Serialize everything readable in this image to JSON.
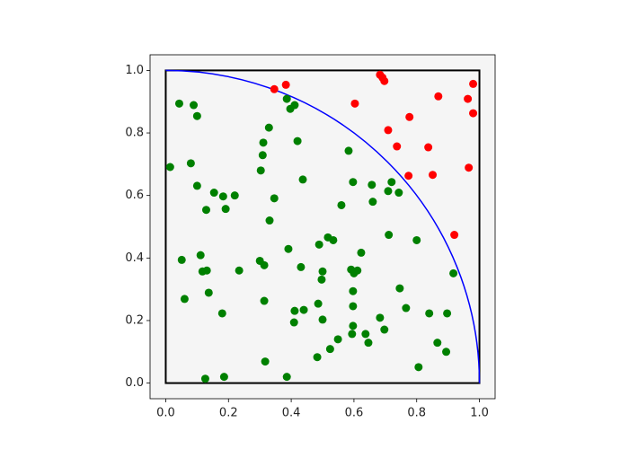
{
  "chart_data": {
    "type": "scatter",
    "xlim": [
      -0.05,
      1.05
    ],
    "ylim": [
      -0.05,
      1.05
    ],
    "xticks": [
      {
        "value": 0,
        "label": "0.0"
      },
      0.2,
      0.4,
      0.6,
      0.8,
      {
        "value": 1,
        "label": "1.0"
      }
    ],
    "yticks": [
      {
        "value": 0,
        "label": "0.0"
      },
      0.2,
      0.4,
      0.6,
      0.8,
      {
        "value": 1,
        "label": "1.0"
      }
    ],
    "background": "#f5f5f5",
    "shapes": [
      {
        "type": "rect",
        "x0": 0,
        "y0": 0,
        "x1": 1,
        "y1": 1,
        "color": "black"
      },
      {
        "type": "arc",
        "center": [
          0,
          0
        ],
        "radius": 1,
        "color": "blue"
      }
    ],
    "series": [
      {
        "color": "red",
        "x": [
          0.346,
          0.383,
          0.603,
          0.683,
          0.691,
          0.697,
          0.869,
          0.963,
          0.98,
          0.98,
          0.777,
          0.709,
          0.737,
          0.837,
          0.774,
          0.851,
          0.966,
          0.92
        ],
        "values": [
          0.94,
          0.954,
          0.894,
          0.986,
          0.977,
          0.966,
          0.917,
          0.909,
          0.957,
          0.863,
          0.851,
          0.809,
          0.757,
          0.754,
          0.663,
          0.666,
          0.689,
          0.474
        ]
      },
      {
        "color": "green",
        "x": [
          0.014,
          0.043,
          0.089,
          0.1,
          0.08,
          0.1,
          0.154,
          0.183,
          0.22,
          0.129,
          0.191,
          0.051,
          0.111,
          0.117,
          0.131,
          0.234,
          0.06,
          0.137,
          0.18,
          0.126,
          0.186,
          0.329,
          0.311,
          0.309,
          0.303,
          0.386,
          0.397,
          0.411,
          0.42,
          0.437,
          0.346,
          0.331,
          0.391,
          0.3,
          0.314,
          0.431,
          0.314,
          0.317,
          0.386,
          0.411,
          0.44,
          0.409,
          0.489,
          0.517,
          0.534,
          0.5,
          0.497,
          0.486,
          0.5,
          0.483,
          0.524,
          0.549,
          0.583,
          0.56,
          0.597,
          0.657,
          0.66,
          0.709,
          0.72,
          0.743,
          0.623,
          0.591,
          0.6,
          0.611,
          0.597,
          0.597,
          0.597,
          0.594,
          0.637,
          0.646,
          0.683,
          0.697,
          0.711,
          0.746,
          0.766,
          0.8,
          0.84,
          0.897,
          0.866,
          0.894,
          0.806,
          0.917
        ],
        "values": [
          0.691,
          0.894,
          0.889,
          0.854,
          0.703,
          0.631,
          0.609,
          0.597,
          0.6,
          0.554,
          0.557,
          0.394,
          0.409,
          0.357,
          0.36,
          0.36,
          0.269,
          0.289,
          0.223,
          0.014,
          0.02,
          0.817,
          0.769,
          0.729,
          0.68,
          0.909,
          0.877,
          0.889,
          0.774,
          0.651,
          0.591,
          0.52,
          0.429,
          0.391,
          0.377,
          0.371,
          0.263,
          0.069,
          0.02,
          0.231,
          0.234,
          0.194,
          0.443,
          0.466,
          0.457,
          0.357,
          0.331,
          0.254,
          0.203,
          0.083,
          0.109,
          0.14,
          0.743,
          0.569,
          0.643,
          0.634,
          0.58,
          0.614,
          0.643,
          0.609,
          0.417,
          0.363,
          0.351,
          0.36,
          0.294,
          0.246,
          0.183,
          0.157,
          0.157,
          0.129,
          0.209,
          0.171,
          0.474,
          0.303,
          0.24,
          0.457,
          0.223,
          0.223,
          0.129,
          0.1,
          0.051,
          0.351
        ]
      }
    ]
  }
}
